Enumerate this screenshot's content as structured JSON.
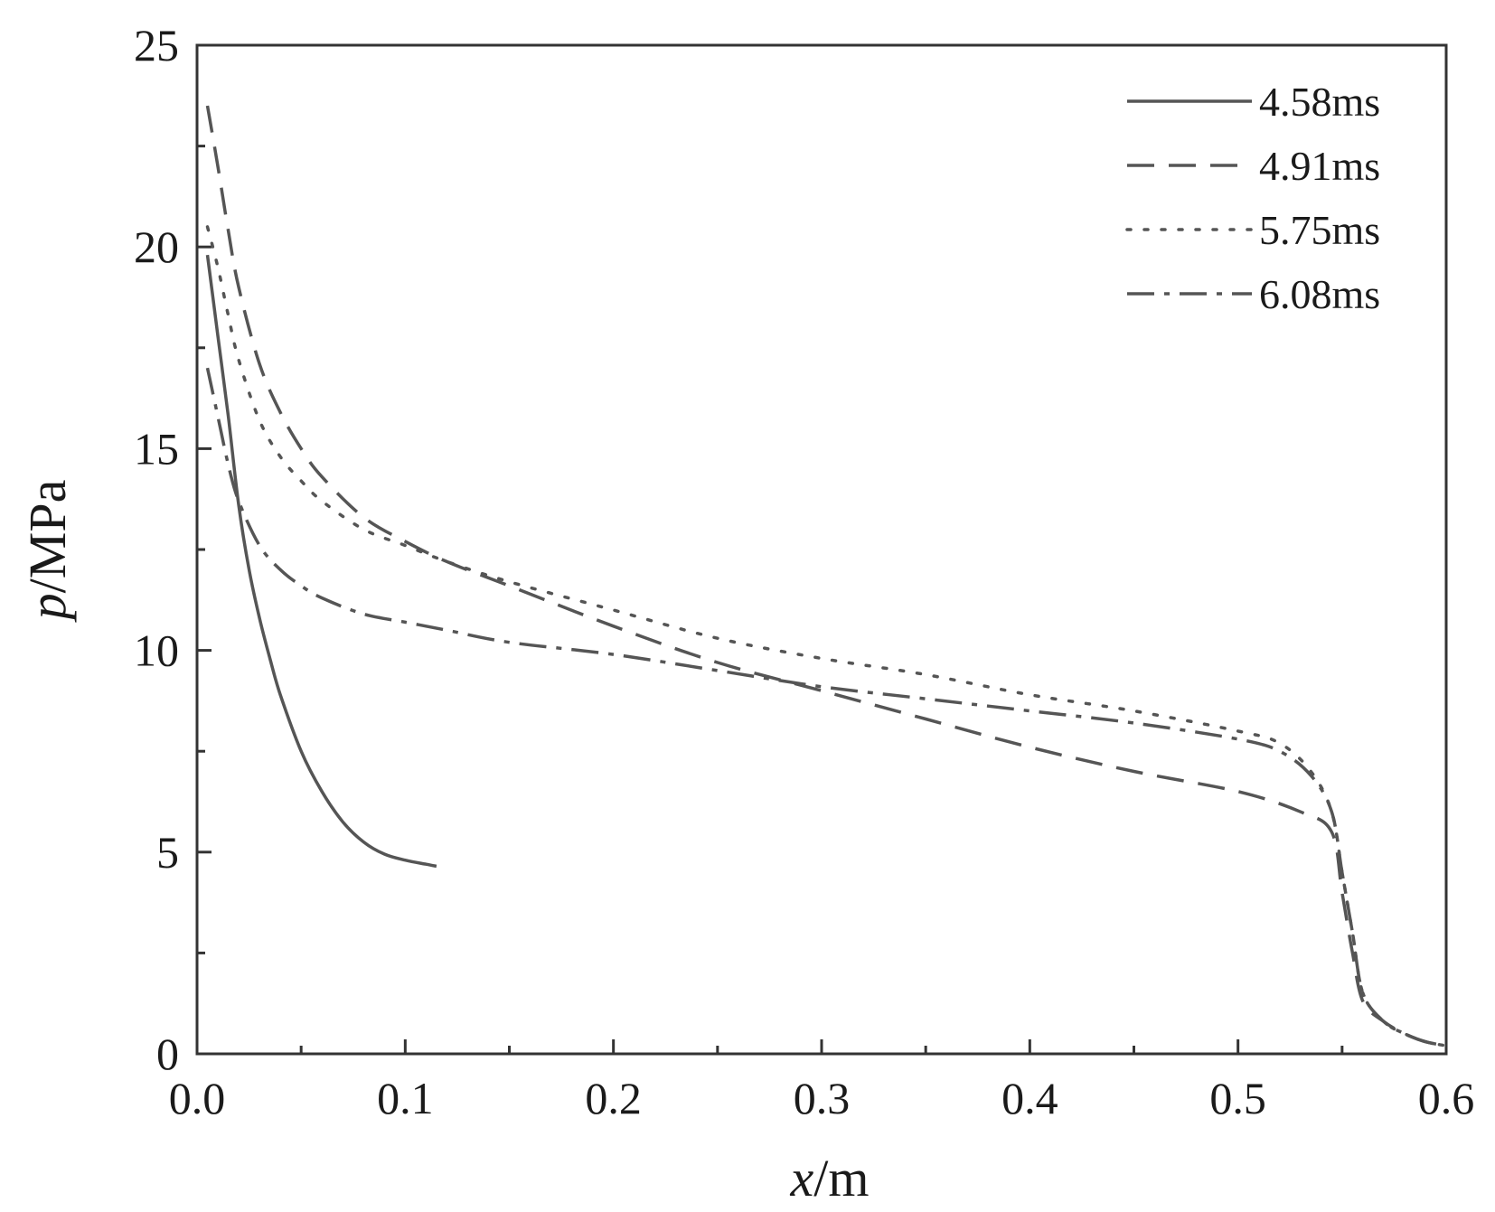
{
  "chart_data": {
    "type": "line",
    "title": "",
    "xlabel": "x/m",
    "xlabel_var": "x",
    "xlabel_unit": "/m",
    "ylabel": "p/MPa",
    "ylabel_var": "p",
    "ylabel_unit": "/MPa",
    "xlim": [
      0,
      0.6
    ],
    "ylim": [
      0,
      25
    ],
    "xticks": [
      0.0,
      0.1,
      0.2,
      0.3,
      0.4,
      0.5,
      0.6
    ],
    "xtick_labels": [
      "0.0",
      "0.1",
      "0.2",
      "0.3",
      "0.4",
      "0.5",
      "0.6"
    ],
    "yticks": [
      0,
      5,
      10,
      15,
      20,
      25
    ],
    "ytick_labels": [
      "0",
      "5",
      "10",
      "15",
      "20",
      "25"
    ],
    "grid": false,
    "legend_position": "top-right",
    "line_color": "#555555",
    "series": [
      {
        "name": "4.58ms",
        "style": "solid",
        "x": [
          0.005,
          0.01,
          0.015,
          0.02,
          0.025,
          0.03,
          0.035,
          0.04,
          0.05,
          0.06,
          0.07,
          0.08,
          0.09,
          0.1,
          0.11,
          0.115
        ],
        "y": [
          19.8,
          17.8,
          15.8,
          13.6,
          12.0,
          10.8,
          9.8,
          8.9,
          7.5,
          6.5,
          5.75,
          5.25,
          4.95,
          4.8,
          4.7,
          4.65
        ]
      },
      {
        "name": "4.91ms",
        "style": "dashed",
        "x": [
          0.005,
          0.01,
          0.015,
          0.02,
          0.03,
          0.04,
          0.05,
          0.06,
          0.08,
          0.1,
          0.12,
          0.15,
          0.2,
          0.25,
          0.3,
          0.35,
          0.4,
          0.45,
          0.5,
          0.53,
          0.545,
          0.55,
          0.555,
          0.56,
          0.57,
          0.58,
          0.59,
          0.6
        ],
        "y": [
          23.5,
          22.0,
          20.4,
          19.0,
          17.1,
          15.9,
          15.0,
          14.3,
          13.3,
          12.7,
          12.2,
          11.6,
          10.6,
          9.7,
          9.0,
          8.3,
          7.6,
          7.0,
          6.5,
          6.0,
          5.5,
          4.0,
          2.5,
          1.3,
          0.8,
          0.5,
          0.3,
          0.2
        ]
      },
      {
        "name": "5.75ms",
        "style": "dotted",
        "x": [
          0.005,
          0.01,
          0.015,
          0.02,
          0.03,
          0.04,
          0.05,
          0.06,
          0.08,
          0.1,
          0.12,
          0.15,
          0.2,
          0.25,
          0.3,
          0.35,
          0.4,
          0.45,
          0.5,
          0.52,
          0.535,
          0.545,
          0.55,
          0.555,
          0.56,
          0.57,
          0.58,
          0.59,
          0.6
        ],
        "y": [
          20.5,
          19.5,
          18.3,
          17.2,
          15.7,
          14.8,
          14.2,
          13.7,
          13.0,
          12.6,
          12.2,
          11.7,
          11.0,
          10.3,
          9.8,
          9.4,
          8.9,
          8.5,
          8.0,
          7.7,
          7.0,
          6.0,
          4.5,
          3.0,
          1.5,
          0.8,
          0.5,
          0.3,
          0.2
        ]
      },
      {
        "name": "6.08ms",
        "style": "dash-dot",
        "x": [
          0.005,
          0.01,
          0.015,
          0.02,
          0.03,
          0.04,
          0.05,
          0.06,
          0.08,
          0.1,
          0.12,
          0.15,
          0.2,
          0.25,
          0.3,
          0.35,
          0.4,
          0.45,
          0.5,
          0.52,
          0.535,
          0.545,
          0.55,
          0.555,
          0.56,
          0.57,
          0.58,
          0.59,
          0.6
        ],
        "y": [
          17.0,
          15.8,
          14.6,
          13.7,
          12.6,
          12.0,
          11.6,
          11.3,
          10.9,
          10.7,
          10.5,
          10.2,
          9.9,
          9.5,
          9.1,
          8.8,
          8.5,
          8.2,
          7.8,
          7.5,
          6.9,
          6.0,
          4.5,
          3.0,
          1.5,
          0.8,
          0.5,
          0.3,
          0.2
        ]
      }
    ]
  }
}
